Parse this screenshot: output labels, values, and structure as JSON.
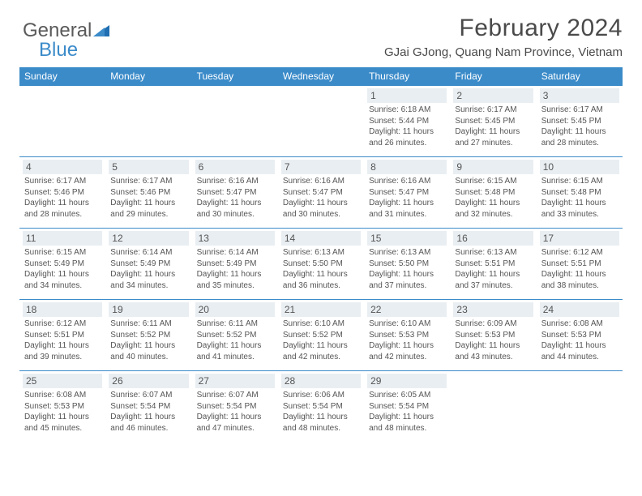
{
  "brand": {
    "part1": "General",
    "part2": "Blue"
  },
  "header": {
    "title": "February 2024",
    "subtitle": "GJai GJong, Quang Nam Province, Vietnam"
  },
  "colors": {
    "header_bg": "#3b8bc9",
    "header_text": "#ffffff",
    "daynum_bg": "#e9eef2",
    "border": "#3b8bc9",
    "body_text": "#555555",
    "title_text": "#4a4a4a"
  },
  "weekdays": [
    "Sunday",
    "Monday",
    "Tuesday",
    "Wednesday",
    "Thursday",
    "Friday",
    "Saturday"
  ],
  "weeks": [
    [
      {
        "blank": true
      },
      {
        "blank": true
      },
      {
        "blank": true
      },
      {
        "blank": true
      },
      {
        "n": "1",
        "sr": "6:18 AM",
        "ss": "5:44 PM",
        "dl": "11 hours and 26 minutes."
      },
      {
        "n": "2",
        "sr": "6:17 AM",
        "ss": "5:45 PM",
        "dl": "11 hours and 27 minutes."
      },
      {
        "n": "3",
        "sr": "6:17 AM",
        "ss": "5:45 PM",
        "dl": "11 hours and 28 minutes."
      }
    ],
    [
      {
        "n": "4",
        "sr": "6:17 AM",
        "ss": "5:46 PM",
        "dl": "11 hours and 28 minutes."
      },
      {
        "n": "5",
        "sr": "6:17 AM",
        "ss": "5:46 PM",
        "dl": "11 hours and 29 minutes."
      },
      {
        "n": "6",
        "sr": "6:16 AM",
        "ss": "5:47 PM",
        "dl": "11 hours and 30 minutes."
      },
      {
        "n": "7",
        "sr": "6:16 AM",
        "ss": "5:47 PM",
        "dl": "11 hours and 30 minutes."
      },
      {
        "n": "8",
        "sr": "6:16 AM",
        "ss": "5:47 PM",
        "dl": "11 hours and 31 minutes."
      },
      {
        "n": "9",
        "sr": "6:15 AM",
        "ss": "5:48 PM",
        "dl": "11 hours and 32 minutes."
      },
      {
        "n": "10",
        "sr": "6:15 AM",
        "ss": "5:48 PM",
        "dl": "11 hours and 33 minutes."
      }
    ],
    [
      {
        "n": "11",
        "sr": "6:15 AM",
        "ss": "5:49 PM",
        "dl": "11 hours and 34 minutes."
      },
      {
        "n": "12",
        "sr": "6:14 AM",
        "ss": "5:49 PM",
        "dl": "11 hours and 34 minutes."
      },
      {
        "n": "13",
        "sr": "6:14 AM",
        "ss": "5:49 PM",
        "dl": "11 hours and 35 minutes."
      },
      {
        "n": "14",
        "sr": "6:13 AM",
        "ss": "5:50 PM",
        "dl": "11 hours and 36 minutes."
      },
      {
        "n": "15",
        "sr": "6:13 AM",
        "ss": "5:50 PM",
        "dl": "11 hours and 37 minutes."
      },
      {
        "n": "16",
        "sr": "6:13 AM",
        "ss": "5:51 PM",
        "dl": "11 hours and 37 minutes."
      },
      {
        "n": "17",
        "sr": "6:12 AM",
        "ss": "5:51 PM",
        "dl": "11 hours and 38 minutes."
      }
    ],
    [
      {
        "n": "18",
        "sr": "6:12 AM",
        "ss": "5:51 PM",
        "dl": "11 hours and 39 minutes."
      },
      {
        "n": "19",
        "sr": "6:11 AM",
        "ss": "5:52 PM",
        "dl": "11 hours and 40 minutes."
      },
      {
        "n": "20",
        "sr": "6:11 AM",
        "ss": "5:52 PM",
        "dl": "11 hours and 41 minutes."
      },
      {
        "n": "21",
        "sr": "6:10 AM",
        "ss": "5:52 PM",
        "dl": "11 hours and 42 minutes."
      },
      {
        "n": "22",
        "sr": "6:10 AM",
        "ss": "5:53 PM",
        "dl": "11 hours and 42 minutes."
      },
      {
        "n": "23",
        "sr": "6:09 AM",
        "ss": "5:53 PM",
        "dl": "11 hours and 43 minutes."
      },
      {
        "n": "24",
        "sr": "6:08 AM",
        "ss": "5:53 PM",
        "dl": "11 hours and 44 minutes."
      }
    ],
    [
      {
        "n": "25",
        "sr": "6:08 AM",
        "ss": "5:53 PM",
        "dl": "11 hours and 45 minutes."
      },
      {
        "n": "26",
        "sr": "6:07 AM",
        "ss": "5:54 PM",
        "dl": "11 hours and 46 minutes."
      },
      {
        "n": "27",
        "sr": "6:07 AM",
        "ss": "5:54 PM",
        "dl": "11 hours and 47 minutes."
      },
      {
        "n": "28",
        "sr": "6:06 AM",
        "ss": "5:54 PM",
        "dl": "11 hours and 48 minutes."
      },
      {
        "n": "29",
        "sr": "6:05 AM",
        "ss": "5:54 PM",
        "dl": "11 hours and 48 minutes."
      },
      {
        "blank": true
      },
      {
        "blank": true
      }
    ]
  ],
  "labels": {
    "sunrise": "Sunrise: ",
    "sunset": "Sunset: ",
    "daylight": "Daylight: "
  }
}
